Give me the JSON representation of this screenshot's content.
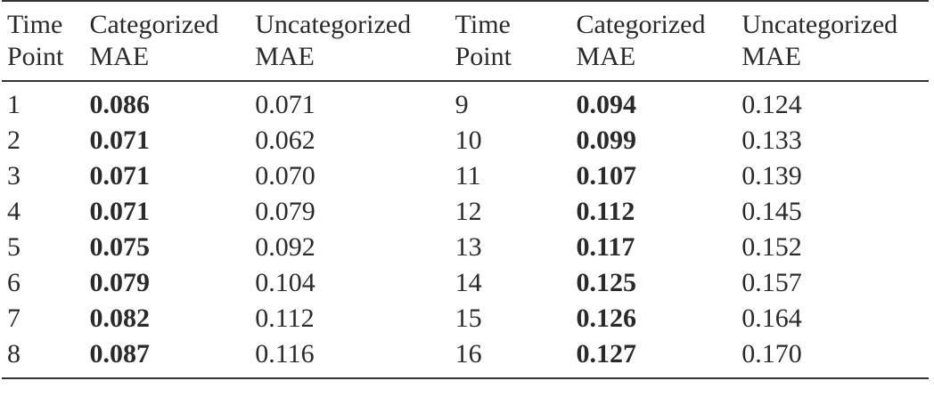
{
  "headers": {
    "time_point_1": "Time",
    "time_point_2": "Point",
    "categorized_1": "Categorized",
    "categorized_2": "MAE",
    "uncategorized_1": "Uncategorized",
    "uncategorized_2": "MAE"
  },
  "rows": [
    {
      "tp_a": "1",
      "cat_a": "0.086",
      "unc_a": "0.071",
      "tp_b": "9",
      "cat_b": "0.094",
      "unc_b": "0.124"
    },
    {
      "tp_a": "2",
      "cat_a": "0.071",
      "unc_a": "0.062",
      "tp_b": "10",
      "cat_b": "0.099",
      "unc_b": "0.133"
    },
    {
      "tp_a": "3",
      "cat_a": "0.071",
      "unc_a": "0.070",
      "tp_b": "11",
      "cat_b": "0.107",
      "unc_b": "0.139"
    },
    {
      "tp_a": "4",
      "cat_a": "0.071",
      "unc_a": "0.079",
      "tp_b": "12",
      "cat_b": "0.112",
      "unc_b": "0.145"
    },
    {
      "tp_a": "5",
      "cat_a": "0.075",
      "unc_a": "0.092",
      "tp_b": "13",
      "cat_b": "0.117",
      "unc_b": "0.152"
    },
    {
      "tp_a": "6",
      "cat_a": "0.079",
      "unc_a": "0.104",
      "tp_b": "14",
      "cat_b": "0.125",
      "unc_b": "0.157"
    },
    {
      "tp_a": "7",
      "cat_a": "0.082",
      "unc_a": "0.112",
      "tp_b": "15",
      "cat_b": "0.126",
      "unc_b": "0.164"
    },
    {
      "tp_a": "8",
      "cat_a": "0.087",
      "unc_a": "0.116",
      "tp_b": "16",
      "cat_b": "0.127",
      "unc_b": "0.170"
    }
  ]
}
